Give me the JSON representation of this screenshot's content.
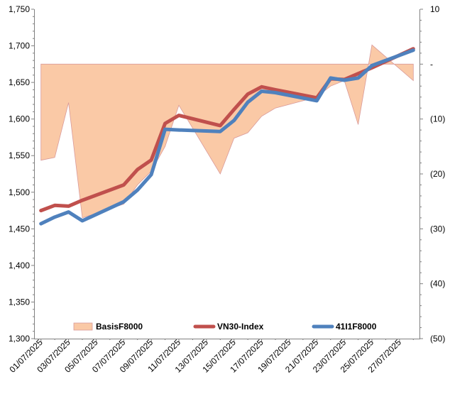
{
  "chart_data": {
    "type": "line",
    "title": "",
    "xlabel": "",
    "ylabel": "",
    "ylim": [
      1300,
      1750
    ],
    "y2lim": [
      -50,
      10
    ],
    "y2_ticks": [
      10,
      0,
      -10,
      -20,
      -30,
      -40,
      -50
    ],
    "y_ticks": [
      1300,
      1350,
      1400,
      1450,
      1500,
      1550,
      1600,
      1650,
      1700,
      1750
    ],
    "y_tick_labels": [
      "1,300",
      "1,350",
      "1,400",
      "1,450",
      "1,500",
      "1,550",
      "1,600",
      "1,650",
      "1,700",
      "1,750"
    ],
    "y2_tick_labels": [
      "10",
      "-",
      "(10)",
      "(20)",
      "(30)",
      "(40)",
      "(50)"
    ],
    "x_tick_labels": [
      "01/07/2025",
      "03/07/2025",
      "05/07/2025",
      "07/07/2025",
      "09/07/2025",
      "11/07/2025",
      "13/07/2025",
      "15/07/2025",
      "17/07/2025",
      "19/07/2025",
      "21/07/2025",
      "23/07/2025",
      "25/07/2025",
      "27/07/2025"
    ],
    "grid": false,
    "legend_position": "bottom",
    "x": [
      "01/07/2025",
      "02/07/2025",
      "03/07/2025",
      "04/07/2025",
      "07/07/2025",
      "08/07/2025",
      "09/07/2025",
      "10/07/2025",
      "11/07/2025",
      "14/07/2025",
      "15/07/2025",
      "16/07/2025",
      "17/07/2025",
      "18/07/2025",
      "21/07/2025",
      "22/07/2025",
      "23/07/2025",
      "24/07/2025",
      "25/07/2025",
      "28/07/2025"
    ],
    "series": [
      {
        "name": "BasisF8000",
        "kind": "area",
        "axis": "right",
        "color": "#FAC9A6",
        "edge": "#D99A9A",
        "values": [
          -17.5,
          -17,
          -7,
          -28,
          -25.5,
          -22,
          -19.5,
          -15,
          -7.5,
          -20,
          -13.5,
          -12.5,
          -9.5,
          -8,
          -6,
          -4,
          -3,
          -11,
          3.5,
          -3
        ]
      },
      {
        "name": "VN30-Index",
        "kind": "line",
        "axis": "left",
        "color": "#C0504D",
        "values": [
          1475,
          1482,
          1481,
          1489,
          1510,
          1531,
          1544,
          1594,
          1605,
          1591,
          1613,
          1634,
          1644,
          1640,
          1629,
          1655,
          1654,
          1662,
          1670,
          1696
        ]
      },
      {
        "name": "41I1F8000",
        "kind": "line",
        "axis": "left",
        "color": "#4F81BD",
        "values": [
          1457,
          1466,
          1473,
          1461,
          1487,
          1503,
          1524,
          1586,
          1585,
          1583,
          1598,
          1623,
          1638,
          1636,
          1625,
          1656,
          1653,
          1656,
          1673,
          1694
        ]
      }
    ]
  }
}
